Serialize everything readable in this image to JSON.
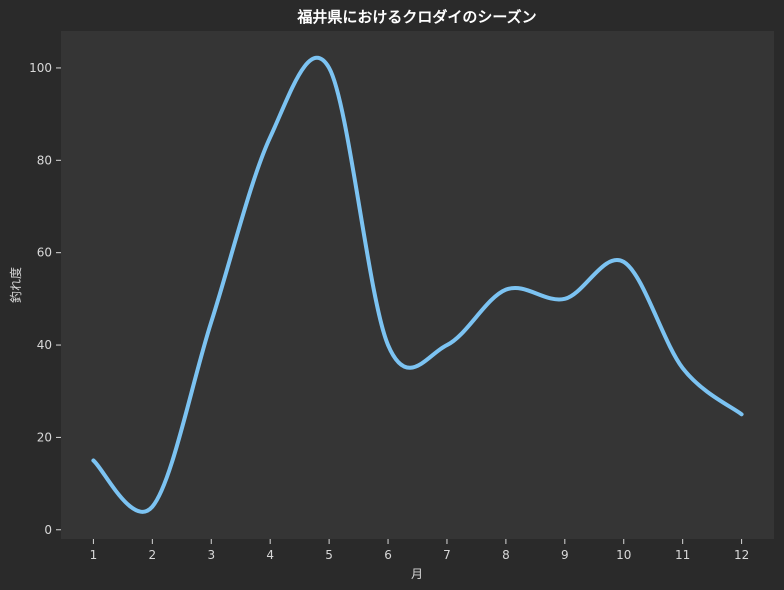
{
  "chart_data": {
    "type": "line",
    "title": "福井県におけるクロダイのシーズン",
    "xlabel": "月",
    "ylabel": "釣れ度",
    "x": [
      1,
      2,
      3,
      4,
      5,
      6,
      7,
      8,
      9,
      10,
      11,
      12
    ],
    "series": [
      {
        "values": [
          15,
          5,
          45,
          85,
          100,
          40,
          40,
          52,
          50,
          58,
          35,
          25
        ]
      }
    ],
    "xlim": [
      0.45,
      12.55
    ],
    "ylim": [
      -2,
      108
    ],
    "xticks": [
      1,
      2,
      3,
      4,
      5,
      6,
      7,
      8,
      9,
      10,
      11,
      12
    ],
    "yticks": [
      0,
      20,
      40,
      60,
      80,
      100
    ],
    "grid": false,
    "legend": "none",
    "colors": {
      "figure_background": "#2a2a2a",
      "plot_background": "#353535",
      "line": "#7cc3f2",
      "text": "#d8d8d8",
      "title": "#ffffff"
    }
  }
}
